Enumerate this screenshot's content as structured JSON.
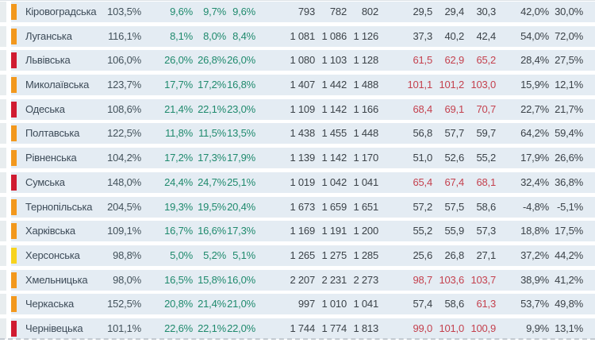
{
  "table": {
    "indicator_colors": {
      "orange": "#f2981d",
      "red": "#d01b31",
      "yellow": "#f7d31e"
    },
    "rows": [
      {
        "region": "Кіровоградська",
        "indicator": "orange",
        "pct_total": "103,5%",
        "growth": [
          "9,6%",
          "9,7%",
          "9,6%"
        ],
        "counts": [
          "793",
          "782",
          "802"
        ],
        "values": [
          "29,5",
          "29,4",
          "30,3"
        ],
        "values_alert": [
          false,
          false,
          false
        ],
        "trail": [
          "42,0%",
          "30,0%"
        ]
      },
      {
        "region": "Луганська",
        "indicator": "orange",
        "pct_total": "116,1%",
        "growth": [
          "8,1%",
          "8,0%",
          "8,4%"
        ],
        "counts": [
          "1 081",
          "1 086",
          "1 126"
        ],
        "values": [
          "37,3",
          "40,2",
          "42,4"
        ],
        "values_alert": [
          false,
          false,
          false
        ],
        "trail": [
          "54,0%",
          "72,0%"
        ]
      },
      {
        "region": "Львівська",
        "indicator": "red",
        "pct_total": "106,0%",
        "growth": [
          "26,0%",
          "26,8%",
          "26,0%"
        ],
        "counts": [
          "1 080",
          "1 103",
          "1 128"
        ],
        "values": [
          "61,5",
          "62,9",
          "65,2"
        ],
        "values_alert": [
          true,
          true,
          true
        ],
        "trail": [
          "28,4%",
          "27,5%"
        ]
      },
      {
        "region": "Миколаївська",
        "indicator": "orange",
        "pct_total": "123,7%",
        "growth": [
          "17,7%",
          "17,2%",
          "16,8%"
        ],
        "counts": [
          "1 407",
          "1 442",
          "1 488"
        ],
        "values": [
          "101,1",
          "101,2",
          "103,0"
        ],
        "values_alert": [
          true,
          true,
          true
        ],
        "trail": [
          "15,9%",
          "12,1%"
        ]
      },
      {
        "region": "Одеська",
        "indicator": "red",
        "pct_total": "108,6%",
        "growth": [
          "21,4%",
          "22,1%",
          "23,0%"
        ],
        "counts": [
          "1 109",
          "1 142",
          "1 166"
        ],
        "values": [
          "68,4",
          "69,1",
          "70,7"
        ],
        "values_alert": [
          true,
          true,
          true
        ],
        "trail": [
          "22,7%",
          "21,7%"
        ]
      },
      {
        "region": "Полтавська",
        "indicator": "orange",
        "pct_total": "122,5%",
        "growth": [
          "11,8%",
          "11,5%",
          "13,5%"
        ],
        "counts": [
          "1 438",
          "1 455",
          "1 448"
        ],
        "values": [
          "56,8",
          "57,7",
          "59,7"
        ],
        "values_alert": [
          false,
          false,
          false
        ],
        "trail": [
          "64,2%",
          "59,4%"
        ]
      },
      {
        "region": "Рівненська",
        "indicator": "orange",
        "pct_total": "104,2%",
        "growth": [
          "17,2%",
          "17,3%",
          "17,9%"
        ],
        "counts": [
          "1 139",
          "1 142",
          "1 170"
        ],
        "values": [
          "51,0",
          "52,6",
          "55,2"
        ],
        "values_alert": [
          false,
          false,
          false
        ],
        "trail": [
          "17,9%",
          "26,6%"
        ]
      },
      {
        "region": "Сумська",
        "indicator": "red",
        "pct_total": "148,0%",
        "growth": [
          "24,4%",
          "24,7%",
          "25,1%"
        ],
        "counts": [
          "1 019",
          "1 042",
          "1 041"
        ],
        "values": [
          "65,4",
          "67,4",
          "68,1"
        ],
        "values_alert": [
          true,
          true,
          true
        ],
        "trail": [
          "32,4%",
          "36,8%"
        ]
      },
      {
        "region": "Тернопільська",
        "indicator": "orange",
        "pct_total": "204,5%",
        "growth": [
          "19,3%",
          "19,5%",
          "20,4%"
        ],
        "counts": [
          "1 673",
          "1 659",
          "1 651"
        ],
        "values": [
          "57,2",
          "57,5",
          "58,6"
        ],
        "values_alert": [
          false,
          false,
          false
        ],
        "trail": [
          "-4,8%",
          "-5,1%"
        ]
      },
      {
        "region": "Харківська",
        "indicator": "orange",
        "pct_total": "109,1%",
        "growth": [
          "16,7%",
          "16,6%",
          "17,3%"
        ],
        "counts": [
          "1 169",
          "1 191",
          "1 200"
        ],
        "values": [
          "55,2",
          "55,9",
          "57,3"
        ],
        "values_alert": [
          false,
          false,
          false
        ],
        "trail": [
          "18,8%",
          "17,5%"
        ]
      },
      {
        "region": "Херсонська",
        "indicator": "yellow",
        "pct_total": "98,8%",
        "growth": [
          "5,0%",
          "5,2%",
          "5,1%"
        ],
        "counts": [
          "1 265",
          "1 275",
          "1 285"
        ],
        "values": [
          "25,6",
          "26,8",
          "27,1"
        ],
        "values_alert": [
          false,
          false,
          false
        ],
        "trail": [
          "37,2%",
          "44,2%"
        ]
      },
      {
        "region": "Хмельницька",
        "indicator": "orange",
        "pct_total": "98,0%",
        "growth": [
          "16,5%",
          "15,8%",
          "16,0%"
        ],
        "counts": [
          "2 207",
          "2 231",
          "2 273"
        ],
        "values": [
          "98,7",
          "103,6",
          "103,7"
        ],
        "values_alert": [
          true,
          true,
          true
        ],
        "trail": [
          "38,9%",
          "41,2%"
        ]
      },
      {
        "region": "Черкаська",
        "indicator": "orange",
        "pct_total": "152,5%",
        "growth": [
          "20,8%",
          "21,4%",
          "21,0%"
        ],
        "counts": [
          "997",
          "1 010",
          "1 041"
        ],
        "values": [
          "57,4",
          "58,6",
          "61,3"
        ],
        "values_alert": [
          false,
          false,
          true
        ],
        "trail": [
          "53,7%",
          "49,8%"
        ]
      },
      {
        "region": "Чернівецька",
        "indicator": "red",
        "pct_total": "101,1%",
        "growth": [
          "22,6%",
          "22,1%",
          "22,0%"
        ],
        "counts": [
          "1 744",
          "1 774",
          "1 813"
        ],
        "values": [
          "99,0",
          "101,0",
          "100,9"
        ],
        "values_alert": [
          true,
          true,
          true
        ],
        "trail": [
          "9,9%",
          "13,1%"
        ]
      }
    ]
  },
  "chart_data": {
    "type": "table",
    "title": "",
    "rows": [
      [
        "Кіровоградська",
        "103,5%",
        "9,6%",
        "9,7%",
        "9,6%",
        "793",
        "782",
        "802",
        "29,5",
        "29,4",
        "30,3",
        "42,0%",
        "30,0%"
      ],
      [
        "Луганська",
        "116,1%",
        "8,1%",
        "8,0%",
        "8,4%",
        "1 081",
        "1 086",
        "1 126",
        "37,3",
        "40,2",
        "42,4",
        "54,0%",
        "72,0%"
      ],
      [
        "Львівська",
        "106,0%",
        "26,0%",
        "26,8%",
        "26,0%",
        "1 080",
        "1 103",
        "1 128",
        "61,5",
        "62,9",
        "65,2",
        "28,4%",
        "27,5%"
      ],
      [
        "Миколаївська",
        "123,7%",
        "17,7%",
        "17,2%",
        "16,8%",
        "1 407",
        "1 442",
        "1 488",
        "101,1",
        "101,2",
        "103,0",
        "15,9%",
        "12,1%"
      ],
      [
        "Одеська",
        "108,6%",
        "21,4%",
        "22,1%",
        "23,0%",
        "1 109",
        "1 142",
        "1 166",
        "68,4",
        "69,1",
        "70,7",
        "22,7%",
        "21,7%"
      ],
      [
        "Полтавська",
        "122,5%",
        "11,8%",
        "11,5%",
        "13,5%",
        "1 438",
        "1 455",
        "1 448",
        "56,8",
        "57,7",
        "59,7",
        "64,2%",
        "59,4%"
      ],
      [
        "Рівненська",
        "104,2%",
        "17,2%",
        "17,3%",
        "17,9%",
        "1 139",
        "1 142",
        "1 170",
        "51,0",
        "52,6",
        "55,2",
        "17,9%",
        "26,6%"
      ],
      [
        "Сумська",
        "148,0%",
        "24,4%",
        "24,7%",
        "25,1%",
        "1 019",
        "1 042",
        "1 041",
        "65,4",
        "67,4",
        "68,1",
        "32,4%",
        "36,8%"
      ],
      [
        "Тернопільська",
        "204,5%",
        "19,3%",
        "19,5%",
        "20,4%",
        "1 673",
        "1 659",
        "1 651",
        "57,2",
        "57,5",
        "58,6",
        "-4,8%",
        "-5,1%"
      ],
      [
        "Харківська",
        "109,1%",
        "16,7%",
        "16,6%",
        "17,3%",
        "1 169",
        "1 191",
        "1 200",
        "55,2",
        "55,9",
        "57,3",
        "18,8%",
        "17,5%"
      ],
      [
        "Херсонська",
        "98,8%",
        "5,0%",
        "5,2%",
        "5,1%",
        "1 265",
        "1 275",
        "1 285",
        "25,6",
        "26,8",
        "27,1",
        "37,2%",
        "44,2%"
      ],
      [
        "Хмельницька",
        "98,0%",
        "16,5%",
        "15,8%",
        "16,0%",
        "2 207",
        "2 231",
        "2 273",
        "98,7",
        "103,6",
        "103,7",
        "38,9%",
        "41,2%"
      ],
      [
        "Черкаська",
        "152,5%",
        "20,8%",
        "21,4%",
        "21,0%",
        "997",
        "1 010",
        "1 041",
        "57,4",
        "58,6",
        "61,3",
        "53,7%",
        "49,8%"
      ],
      [
        "Чернівецька",
        "101,1%",
        "22,6%",
        "22,1%",
        "22,0%",
        "1 744",
        "1 774",
        "1 813",
        "99,0",
        "101,0",
        "100,9",
        "9,9%",
        "13,1%"
      ]
    ],
    "legend_colors": {
      "row_background": "#e4ecf3",
      "green_text": "#1f8a6d",
      "alert_text": "#c4414e",
      "dark_text": "#3b4248"
    }
  }
}
